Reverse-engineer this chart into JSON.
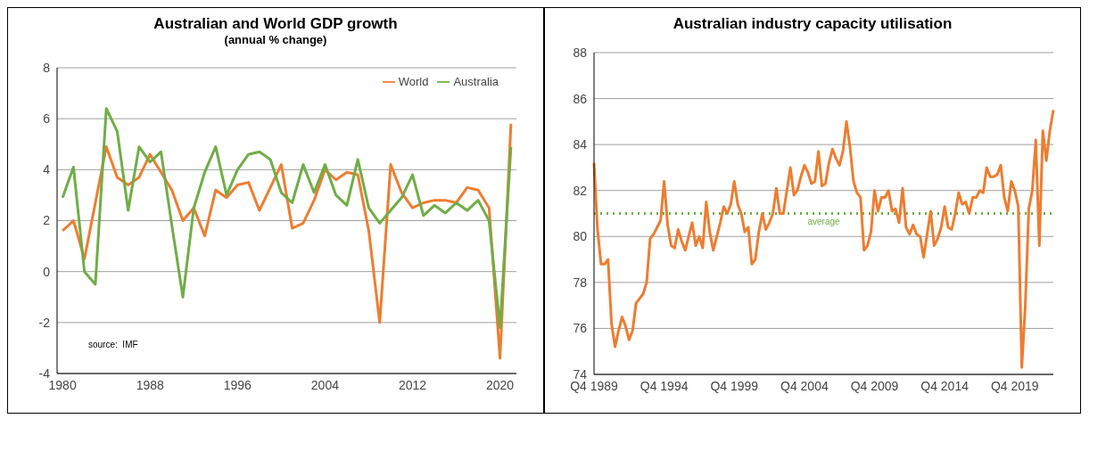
{
  "chart_data": [
    {
      "type": "line",
      "title": "Australian and World GDP growth",
      "subtitle": "(annual % change)",
      "x": [
        1980,
        1981,
        1982,
        1983,
        1984,
        1985,
        1986,
        1987,
        1988,
        1989,
        1990,
        1991,
        1992,
        1993,
        1994,
        1995,
        1996,
        1997,
        1998,
        1999,
        2000,
        2001,
        2002,
        2003,
        2004,
        2005,
        2006,
        2007,
        2008,
        2009,
        2010,
        2011,
        2012,
        2013,
        2014,
        2015,
        2016,
        2017,
        2018,
        2019,
        2020,
        2021
      ],
      "series": [
        {
          "name": "World",
          "color": "#ed7d31",
          "values": [
            1.6,
            2.0,
            0.5,
            2.7,
            4.9,
            3.7,
            3.4,
            3.7,
            4.6,
            3.9,
            3.2,
            2.0,
            2.5,
            1.4,
            3.2,
            2.9,
            3.4,
            3.5,
            2.4,
            3.3,
            4.2,
            1.7,
            1.9,
            2.8,
            4.0,
            3.6,
            3.9,
            3.8,
            1.6,
            -2.0,
            4.2,
            3.1,
            2.5,
            2.7,
            2.8,
            2.8,
            2.7,
            3.3,
            3.2,
            2.5,
            -3.4,
            5.8
          ]
        },
        {
          "name": "Australia",
          "color": "#70ad47",
          "values": [
            2.9,
            4.1,
            0.0,
            -0.5,
            6.4,
            5.5,
            2.4,
            4.9,
            4.3,
            4.7,
            1.8,
            -1.0,
            2.5,
            3.9,
            4.9,
            3.0,
            4.0,
            4.6,
            4.7,
            4.4,
            3.1,
            2.7,
            4.2,
            3.1,
            4.2,
            3.0,
            2.6,
            4.4,
            2.5,
            1.9,
            2.4,
            2.9,
            3.8,
            2.2,
            2.6,
            2.3,
            2.7,
            2.4,
            2.8,
            2.0,
            -2.2,
            4.9
          ]
        }
      ],
      "xlim": [
        1979.5,
        2021.5
      ],
      "xticks": [
        1980,
        1988,
        1996,
        2004,
        2012,
        2020
      ],
      "ylim": [
        -4,
        8
      ],
      "yticks": [
        -4,
        -2,
        0,
        2,
        4,
        6,
        8
      ],
      "grid": "y",
      "legend": "top right",
      "marker": "none",
      "line_style": "solid",
      "annotations": [
        "source:  IMF"
      ]
    },
    {
      "type": "line",
      "title": "Australian industry capacity utilisation",
      "categories": [
        "Q4 1989",
        null,
        null,
        null,
        null,
        null,
        null,
        null,
        null,
        null,
        null,
        null,
        null,
        null,
        null,
        null,
        null,
        null,
        null,
        null,
        "Q4 1994",
        null,
        null,
        null,
        null,
        null,
        null,
        null,
        null,
        null,
        null,
        null,
        null,
        null,
        null,
        null,
        null,
        null,
        null,
        null,
        "Q4 1999",
        null,
        null,
        null,
        null,
        null,
        null,
        null,
        null,
        null,
        null,
        null,
        null,
        null,
        null,
        null,
        null,
        null,
        null,
        null,
        "Q4 2004",
        null,
        null,
        null,
        null,
        null,
        null,
        null,
        null,
        null,
        null,
        null,
        null,
        null,
        null,
        null,
        null,
        null,
        null,
        null,
        "Q4 2009",
        null,
        null,
        null,
        null,
        null,
        null,
        null,
        null,
        null,
        null,
        null,
        null,
        null,
        null,
        null,
        null,
        null,
        null,
        null,
        "Q4 2014",
        null,
        null,
        null,
        null,
        null,
        null,
        null,
        null,
        null,
        null,
        null,
        null,
        null,
        null,
        null,
        null,
        null,
        null,
        null,
        "Q4 2019",
        null,
        null,
        null,
        null,
        null,
        null,
        null,
        null,
        null,
        null,
        null
      ],
      "series": [
        {
          "color": "#ed7d31",
          "values": [
            83.2,
            80.3,
            78.8,
            78.8,
            79.0,
            76.2,
            75.2,
            75.9,
            76.5,
            76.1,
            75.5,
            75.9,
            77.1,
            77.3,
            77.5,
            78.0,
            79.9,
            80.1,
            80.4,
            80.7,
            82.4,
            80.5,
            79.6,
            79.5,
            80.3,
            79.8,
            79.4,
            80.0,
            80.6,
            79.6,
            80.0,
            79.5,
            81.5,
            80.2,
            79.4,
            80.0,
            80.6,
            81.3,
            81.0,
            81.4,
            82.4,
            81.4,
            81.0,
            80.2,
            80.4,
            78.8,
            79.0,
            80.2,
            81.0,
            80.3,
            80.6,
            81.0,
            82.1,
            81.0,
            81.0,
            82.0,
            83.0,
            81.8,
            82.0,
            82.6,
            83.1,
            82.8,
            82.3,
            82.4,
            83.7,
            82.2,
            82.3,
            83.2,
            83.8,
            83.4,
            83.1,
            83.7,
            85.0,
            83.9,
            82.4,
            81.9,
            81.7,
            79.4,
            79.6,
            80.2,
            82.0,
            81.1,
            81.7,
            81.7,
            82.0,
            81.1,
            81.2,
            80.6,
            82.1,
            80.4,
            80.1,
            80.5,
            80.1,
            80.0,
            79.1,
            80.1,
            81.1,
            79.6,
            79.9,
            80.4,
            81.3,
            80.4,
            80.3,
            81.0,
            81.9,
            81.4,
            81.5,
            81.0,
            81.7,
            81.7,
            82.0,
            81.9,
            83.0,
            82.6,
            82.6,
            82.7,
            83.1,
            81.7,
            81.1,
            82.4,
            82.0,
            81.3,
            74.3,
            77.0,
            81.2,
            82.0,
            84.2,
            79.6,
            84.6,
            83.3,
            84.6,
            85.5
          ]
        }
      ],
      "ylim": [
        74,
        88
      ],
      "yticks": [
        74,
        76,
        78,
        80,
        82,
        84,
        86,
        88
      ],
      "grid": "y",
      "marker": "none",
      "line_style": "solid",
      "ref_lines": [
        {
          "axis": "y",
          "value": 81.0,
          "label": "average",
          "color": "#70ad47",
          "line_style": "dotted"
        }
      ]
    }
  ]
}
